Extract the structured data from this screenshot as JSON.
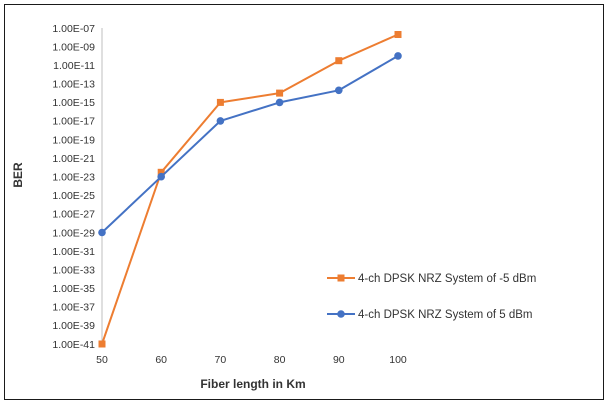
{
  "chart_data": {
    "type": "line",
    "title": "",
    "xlabel": "Fiber length in Km",
    "ylabel": "BER",
    "x": [
      50,
      60,
      70,
      80,
      90,
      100
    ],
    "y_scale": "log",
    "ylim": [
      1e-41,
      1e-07
    ],
    "y_ticks": [
      "1.00E-07",
      "1.00E-09",
      "1.00E-11",
      "1.00E-13",
      "1.00E-15",
      "1.00E-17",
      "1.00E-19",
      "1.00E-21",
      "1.00E-23",
      "1.00E-25",
      "1.00E-27",
      "1.00E-29",
      "1.00E-31",
      "1.00E-33",
      "1.00E-35",
      "1.00E-37",
      "1.00E-39",
      "1.00E-41"
    ],
    "grid": false,
    "legend_position": "lower-right",
    "series": [
      {
        "name": "4-ch DPSK NRZ System of -5 dBm",
        "color": "#ED7D31",
        "marker": "square",
        "values": [
          1e-41,
          3e-23,
          1e-15,
          1e-14,
          3e-11,
          2e-08
        ]
      },
      {
        "name": "4-ch DPSK NRZ System of 5 dBm",
        "color": "#4472C4",
        "marker": "circle",
        "values": [
          1e-29,
          1e-23,
          1e-17,
          1e-15,
          2e-14,
          1e-10
        ]
      }
    ]
  }
}
